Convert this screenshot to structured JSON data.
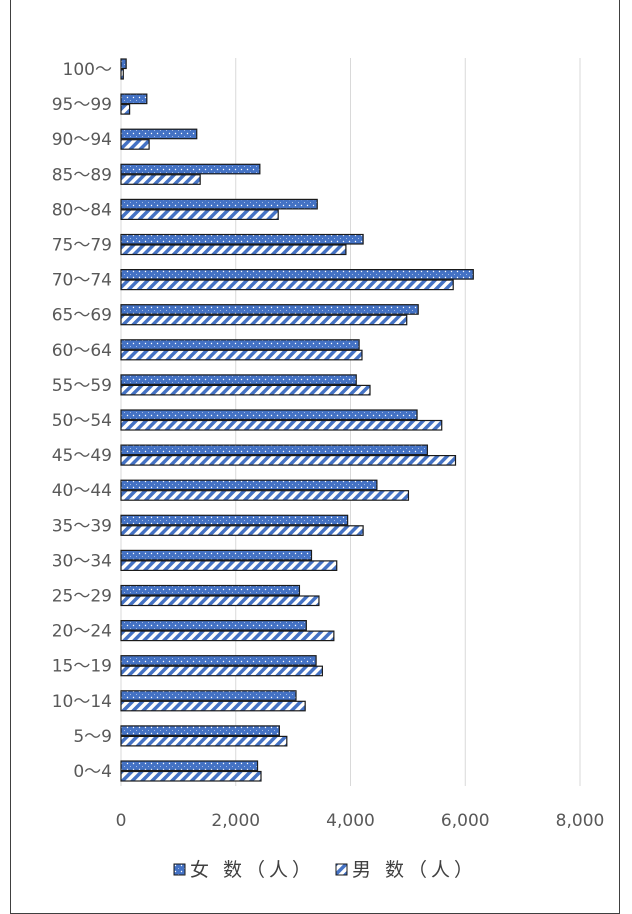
{
  "chart_data": {
    "type": "bar",
    "orientation": "horizontal",
    "categories": [
      "0～4",
      "5～9",
      "10～14",
      "15～19",
      "20～24",
      "25～29",
      "30～34",
      "35～39",
      "40～44",
      "45～49",
      "50～54",
      "55～59",
      "60～64",
      "65～69",
      "70～74",
      "75～79",
      "80～84",
      "85～89",
      "90～94",
      "95～99",
      "100～"
    ],
    "series": [
      {
        "name": "女 数（人）",
        "color": "#4472c4",
        "pattern": "dots",
        "values": [
          2380,
          2760,
          3050,
          3400,
          3230,
          3110,
          3320,
          3950,
          4460,
          5340,
          5160,
          4100,
          4150,
          5180,
          6140,
          4220,
          3420,
          2420,
          1320,
          450,
          90
        ]
      },
      {
        "name": "男 数（人）",
        "color": "#4472c4",
        "pattern": "diagonal",
        "values": [
          2440,
          2890,
          3210,
          3510,
          3710,
          3450,
          3760,
          4220,
          5010,
          5830,
          5590,
          4340,
          4200,
          4980,
          5790,
          3920,
          2740,
          1380,
          490,
          150,
          40
        ]
      }
    ],
    "x_ticks": [
      "0",
      "2,000",
      "4,000",
      "6,000",
      "8,000"
    ],
    "xlim": [
      0,
      8000
    ],
    "grid": "vertical",
    "legend_position": "bottom"
  }
}
